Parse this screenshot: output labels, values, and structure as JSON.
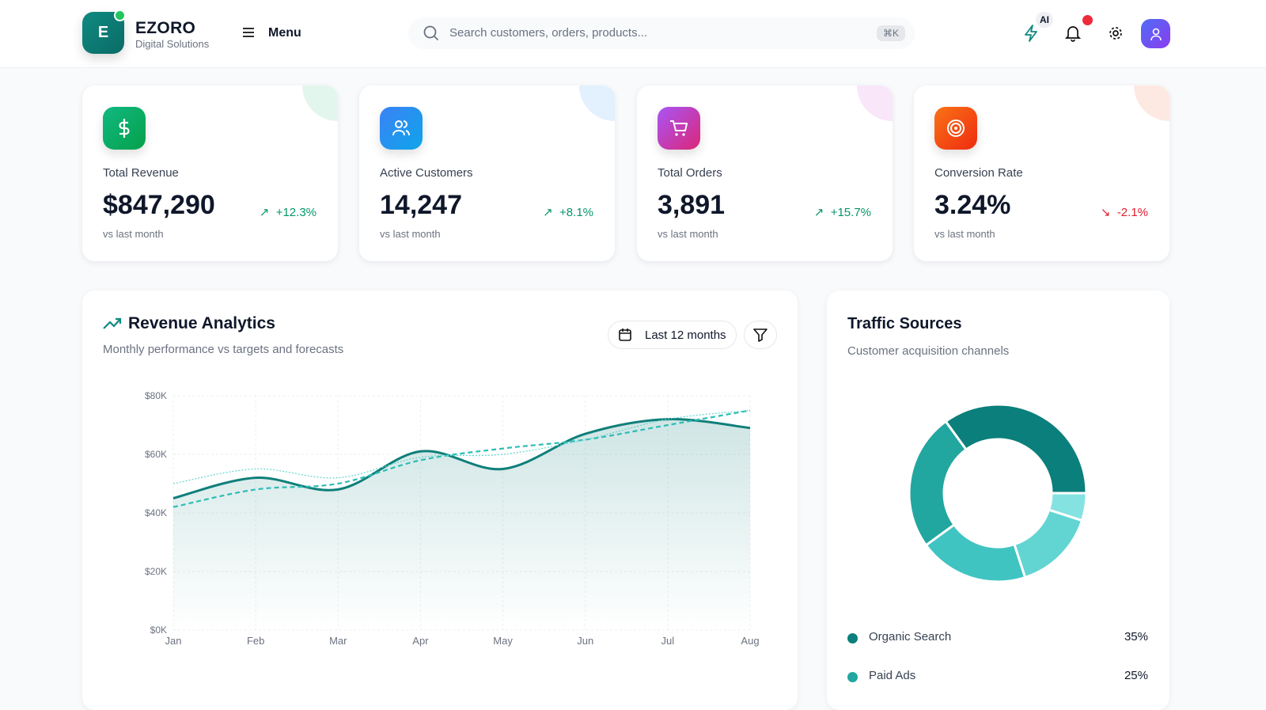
{
  "header": {
    "logo_letter": "E",
    "brand": "EZORO",
    "tagline": "Digital Solutions",
    "menu_label": "Menu",
    "search_placeholder": "Search customers, orders, products...",
    "shortcut": "⌘K",
    "ai_badge": "AI"
  },
  "kpis": [
    {
      "label": "Total Revenue",
      "value": "$847,290",
      "change": "+12.3%",
      "direction": "up",
      "sub": "vs last month",
      "icon": "dollar-icon",
      "color": "#10b981"
    },
    {
      "label": "Active Customers",
      "value": "14,247",
      "change": "+8.1%",
      "direction": "up",
      "sub": "vs last month",
      "icon": "users-icon",
      "color": "#3b82f6"
    },
    {
      "label": "Total Orders",
      "value": "3,891",
      "change": "+15.7%",
      "direction": "up",
      "sub": "vs last month",
      "icon": "cart-icon",
      "color": "#c026d3"
    },
    {
      "label": "Conversion Rate",
      "value": "3.24%",
      "change": "-2.1%",
      "direction": "down",
      "sub": "vs last month",
      "icon": "target-icon",
      "color": "#f97316"
    }
  ],
  "revenue": {
    "title": "Revenue Analytics",
    "subtitle": "Monthly performance vs targets and forecasts",
    "range_label": "Last 12 months"
  },
  "chart_data": [
    {
      "type": "line",
      "categories": [
        "Jan",
        "Feb",
        "Mar",
        "Apr",
        "May",
        "Jun",
        "Jul",
        "Aug"
      ],
      "series": [
        {
          "values": [
            45,
            52,
            48,
            61,
            55,
            67,
            72,
            69
          ],
          "style": "solid-area",
          "color": "#0f7f7a"
        },
        {
          "values": [
            42,
            48,
            50,
            58,
            62,
            65,
            70,
            75
          ],
          "style": "dashed",
          "color": "#2bbdb5"
        },
        {
          "values": [
            50,
            55,
            52,
            59,
            60,
            65,
            72,
            75
          ],
          "style": "dotted",
          "color": "#5fd6d0"
        }
      ],
      "yticks": [
        "$0K",
        "$20K",
        "$40K",
        "$60K",
        "$80K"
      ],
      "ylim": [
        0,
        80
      ],
      "grid": true
    },
    {
      "type": "pie",
      "title": "Traffic Sources",
      "subtitle": "Customer acquisition channels",
      "slices": [
        {
          "name": "Organic Search",
          "value": 35,
          "label": "35%",
          "color": "#0b7f7b"
        },
        {
          "name": "Paid Ads",
          "value": 25,
          "label": "25%",
          "color": "#22a6a0"
        },
        {
          "value": 20,
          "color": "#40c4c2"
        },
        {
          "value": 15,
          "color": "#62d5d3"
        },
        {
          "value": 5,
          "color": "#84e3e1"
        }
      ]
    }
  ]
}
